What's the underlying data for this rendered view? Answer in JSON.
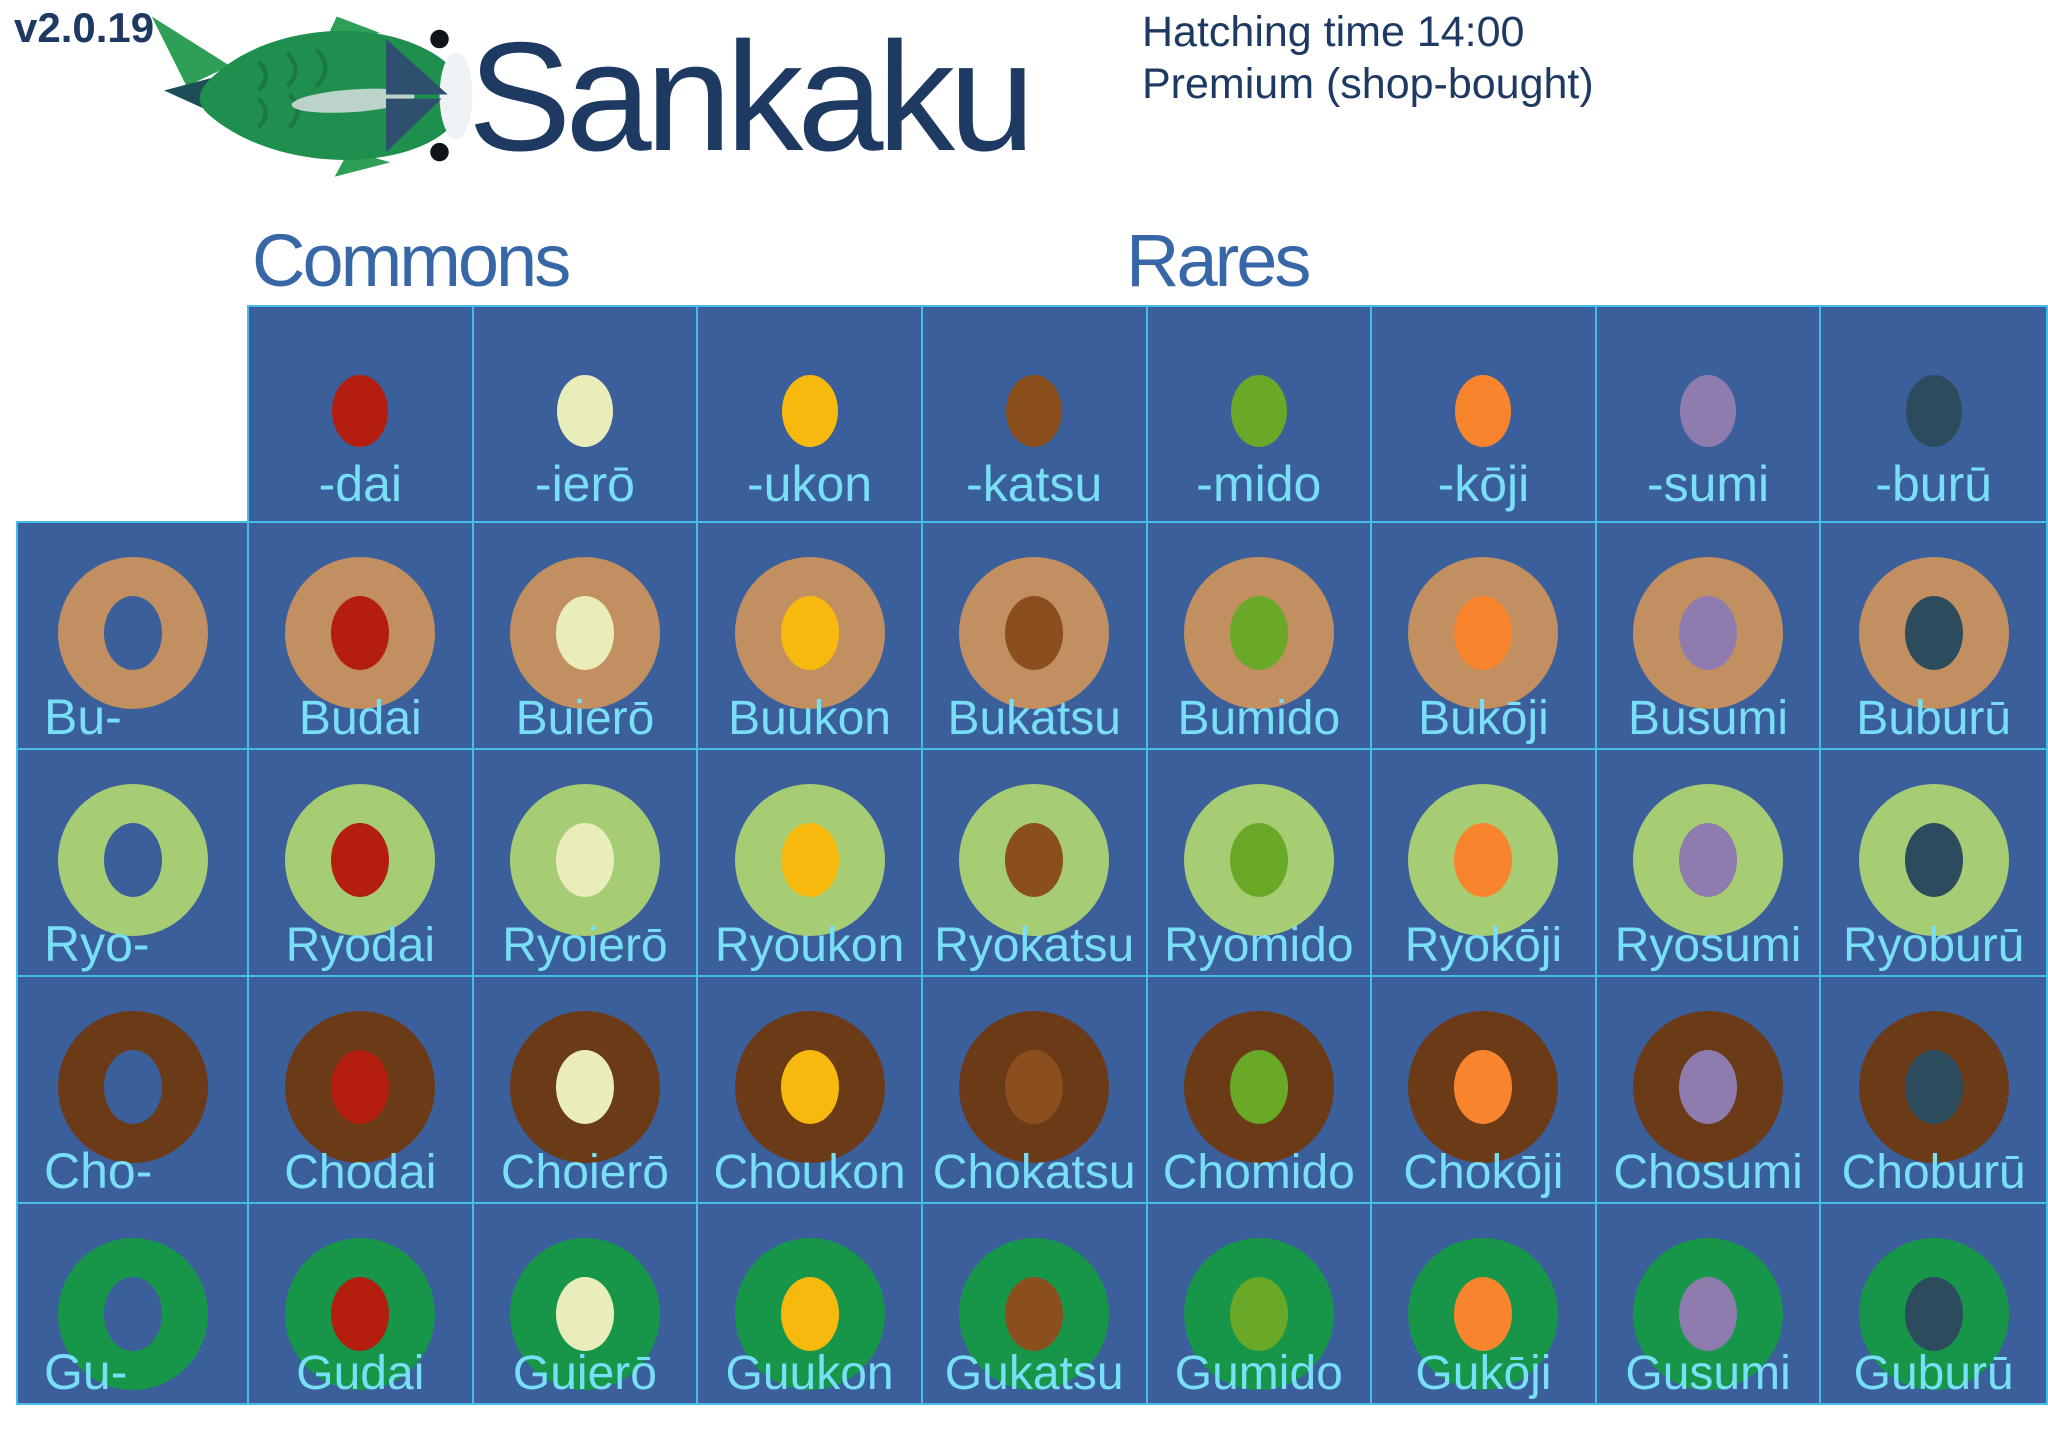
{
  "version": "v2.0.19",
  "title": "Sankaku",
  "info": {
    "hatching_time": "Hatching time 14:00",
    "premium": "Premium (shop-bought)"
  },
  "groups": {
    "commons": "Commons",
    "rares": "Rares"
  },
  "columns": [
    {
      "suffix": "-dai",
      "color": "#b31e0f",
      "group": "Commons"
    },
    {
      "suffix": "-ierō",
      "color": "#e9edba",
      "group": "Commons"
    },
    {
      "suffix": "-ukon",
      "color": "#f7b90d",
      "group": "Commons"
    },
    {
      "suffix": "-katsu",
      "color": "#8a4f1c",
      "group": "Commons"
    },
    {
      "suffix": "-mido",
      "color": "#6aa827",
      "group": "Rares"
    },
    {
      "suffix": "-kōji",
      "color": "#f8852d",
      "group": "Rares"
    },
    {
      "suffix": "-sumi",
      "color": "#8f7cae",
      "group": "Rares"
    },
    {
      "suffix": "-burū",
      "color": "#2c4c5e",
      "group": "Rares"
    }
  ],
  "rows": [
    {
      "prefix": "Bu-",
      "color": "#c28f60",
      "cells": [
        "Budai",
        "Buierō",
        "Buukon",
        "Bukatsu",
        "Bumido",
        "Bukōji",
        "Busumi",
        "Buburū"
      ]
    },
    {
      "prefix": "Ryo-",
      "color": "#a7cd74",
      "cells": [
        "Ryodai",
        "Ryoierō",
        "Ryoukon",
        "Ryokatsu",
        "Ryomido",
        "Ryokōji",
        "Ryosumi",
        "Ryoburū"
      ]
    },
    {
      "prefix": "Cho-",
      "color": "#6b3a17",
      "cells": [
        "Chodai",
        "Choierō",
        "Choukon",
        "Chokatsu",
        "Chomido",
        "Chokōji",
        "Chosumi",
        "Choburū"
      ]
    },
    {
      "prefix": "Gu-",
      "color": "#17964a",
      "cells": [
        "Gudai",
        "Guierō",
        "Guukon",
        "Gukatsu",
        "Gumido",
        "Gukōji",
        "Gusumi",
        "Guburū"
      ]
    }
  ],
  "colors": {
    "navy": "#1e3a62",
    "heading_blue": "#3767a6",
    "cell_bg": "#3b5f9a",
    "grid_line": "#45bcec",
    "label_cyan": "#79dff6"
  },
  "chart_data": {
    "type": "table",
    "title": "Sankaku",
    "subtitle_left": "v2.0.19",
    "annotations": [
      "Hatching time 14:00",
      "Premium (shop-bought)"
    ],
    "column_groups": {
      "Commons": [
        "-dai",
        "-ierō",
        "-ukon",
        "-katsu"
      ],
      "Rares": [
        "-mido",
        "-kōji",
        "-sumi",
        "-burū"
      ]
    },
    "column_suffixes": [
      "-dai",
      "-ierō",
      "-ukon",
      "-katsu",
      "-mido",
      "-kōji",
      "-sumi",
      "-burū"
    ],
    "column_colors": [
      "#b31e0f",
      "#e9edba",
      "#f7b90d",
      "#8a4f1c",
      "#6aa827",
      "#f8852d",
      "#8f7cae",
      "#2c4c5e"
    ],
    "row_prefixes": [
      "Bu-",
      "Ryo-",
      "Cho-",
      "Gu-"
    ],
    "row_colors": [
      "#c28f60",
      "#a7cd74",
      "#6b3a17",
      "#17964a"
    ],
    "cells": [
      [
        "Budai",
        "Buierō",
        "Buukon",
        "Bukatsu",
        "Bumido",
        "Bukōji",
        "Busumi",
        "Buburū"
      ],
      [
        "Ryodai",
        "Ryoierō",
        "Ryoukon",
        "Ryokatsu",
        "Ryomido",
        "Ryokōji",
        "Ryosumi",
        "Ryoburū"
      ],
      [
        "Chodai",
        "Choierō",
        "Choukon",
        "Chokatsu",
        "Chomido",
        "Chokōji",
        "Chosumi",
        "Choburū"
      ],
      [
        "Gudai",
        "Guierō",
        "Guukon",
        "Gukatsu",
        "Gumido",
        "Gukōji",
        "Gusumi",
        "Guburū"
      ]
    ]
  }
}
